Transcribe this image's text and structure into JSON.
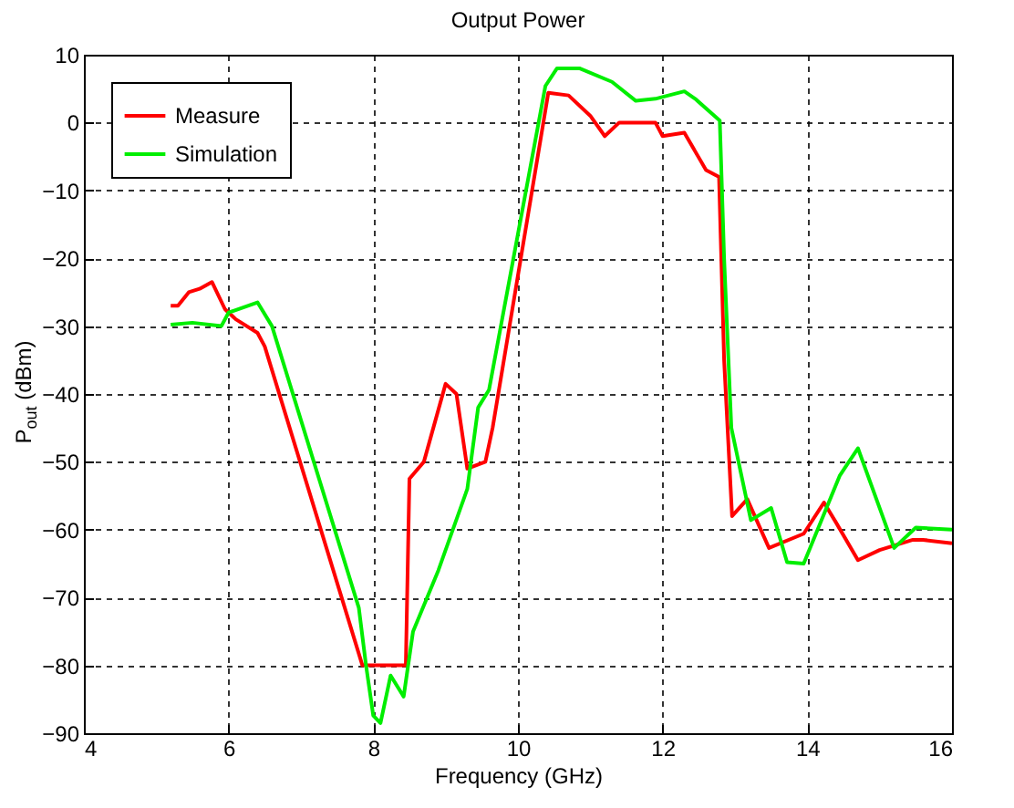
{
  "chart_data": {
    "type": "line",
    "title": "Output Power",
    "xlabel": "Frequency (GHz)",
    "ylabel": "P$_{out}$ (dBm)",
    "xlim": [
      4,
      16
    ],
    "xticks": [
      4,
      6,
      8,
      10,
      12,
      14,
      16
    ],
    "ylim": [
      -90,
      10
    ],
    "yticks": [
      -90,
      -80,
      -70,
      -60,
      -50,
      -40,
      -30,
      -20,
      -10,
      0,
      10
    ],
    "grid": true,
    "legend": "top left",
    "line_style": "solid",
    "marker": "none",
    "series": [
      {
        "name": "Measure",
        "color": "#ff0000",
        "x": [
          5.2,
          5.3,
          5.45,
          5.6,
          5.77,
          5.95,
          6.1,
          6.4,
          6.5,
          7.85,
          8.45,
          8.5,
          8.7,
          9.0,
          9.15,
          9.3,
          9.55,
          9.65,
          10.42,
          10.7,
          11.0,
          11.2,
          11.4,
          11.9,
          12.0,
          12.3,
          12.6,
          12.78,
          12.85,
          12.96,
          13.17,
          13.47,
          13.95,
          14.23,
          14.4,
          14.7,
          15.0,
          15.46,
          15.6,
          16.0
        ],
        "values": [
          -27,
          -27,
          -25,
          -24.5,
          -23.5,
          -27.5,
          -29,
          -31,
          -33,
          -80,
          -80,
          -52.5,
          -50,
          -38.5,
          -40,
          -51,
          -50,
          -45,
          4.4,
          4,
          1,
          -2,
          0,
          0,
          -2,
          -1.5,
          -7,
          -8,
          -35,
          -58,
          -55.5,
          -62.7,
          -60.6,
          -56,
          -59,
          -64.5,
          -63,
          -61.5,
          -61.5,
          -62
        ]
      },
      {
        "name": "Simulation",
        "color": "#00ee00",
        "x": [
          5.2,
          5.5,
          5.9,
          6.0,
          6.4,
          6.6,
          7.8,
          7.9,
          8.0,
          8.1,
          8.24,
          8.42,
          8.55,
          8.9,
          9.3,
          9.45,
          9.6,
          10.38,
          10.54,
          10.85,
          11.3,
          11.63,
          11.9,
          12.3,
          12.45,
          12.79,
          12.85,
          12.95,
          13.22,
          13.5,
          13.72,
          13.95,
          14.45,
          14.7,
          15.2,
          15.5,
          16.0
        ],
        "values": [
          -29.8,
          -29.5,
          -30,
          -28,
          -26.5,
          -30,
          -71.5,
          -80,
          -87.4,
          -88.5,
          -81.5,
          -84.6,
          -75,
          -66,
          -54,
          -42,
          -39.4,
          5.4,
          8,
          8,
          6,
          3.2,
          3.5,
          4.6,
          3.5,
          0.3,
          -20,
          -45,
          -58.6,
          -56.8,
          -64.8,
          -65,
          -52,
          -48,
          -62.7,
          -59.7,
          -60
        ]
      }
    ]
  }
}
